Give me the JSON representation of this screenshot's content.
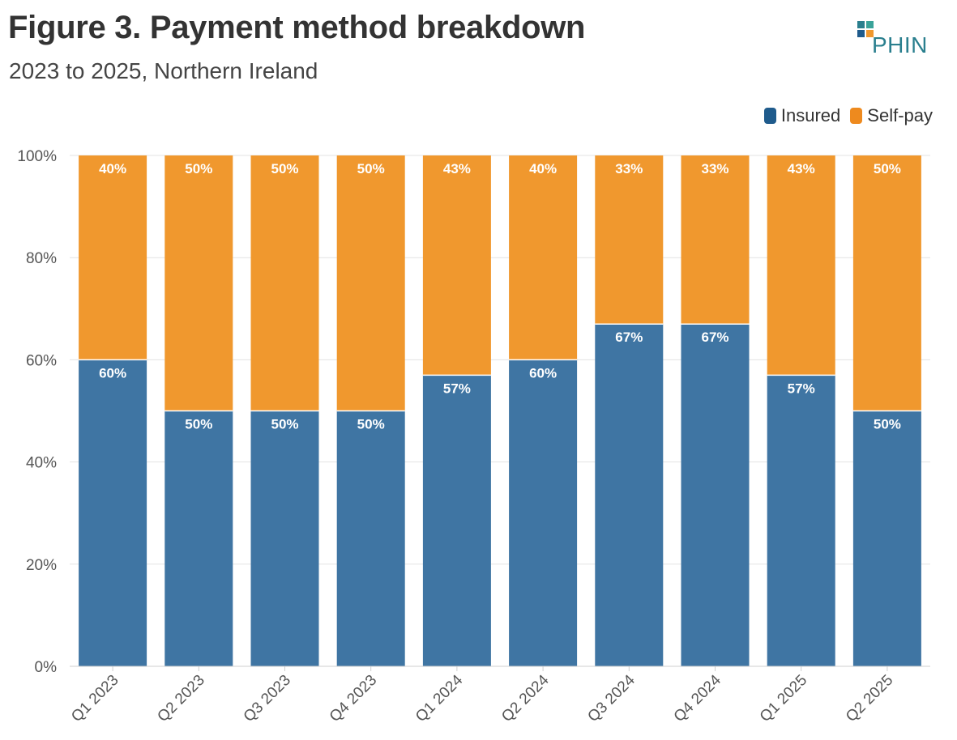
{
  "chart_data": {
    "type": "bar",
    "stacked": true,
    "title": "Figure 3. Payment method breakdown",
    "subtitle": "2023 to 2025, Northern Ireland",
    "brand": "PHIN",
    "categories": [
      "Q1 2023",
      "Q2 2023",
      "Q3 2023",
      "Q4 2023",
      "Q1 2024",
      "Q2 2024",
      "Q3 2024",
      "Q4 2024",
      "Q1 2025",
      "Q2 2025"
    ],
    "series": [
      {
        "name": "Insured",
        "color": "#3f75a3",
        "values": [
          60,
          50,
          50,
          50,
          57,
          60,
          67,
          67,
          57,
          50
        ],
        "labels": [
          "60%",
          "50%",
          "50%",
          "50%",
          "57%",
          "60%",
          "67%",
          "67%",
          "57%",
          "50%"
        ]
      },
      {
        "name": "Self-pay",
        "color": "#f0982e",
        "values": [
          40,
          50,
          50,
          50,
          43,
          40,
          33,
          33,
          43,
          50
        ],
        "labels": [
          "40%",
          "50%",
          "50%",
          "50%",
          "43%",
          "40%",
          "33%",
          "33%",
          "43%",
          "50%"
        ]
      }
    ],
    "yticks": [
      "0%",
      "20%",
      "40%",
      "60%",
      "80%",
      "100%"
    ],
    "ylim": [
      0,
      100
    ],
    "legend": "top-right",
    "grid": true
  },
  "legend_colors": {
    "insured": "#1f5b8c",
    "selfpay": "#ee8a1e"
  }
}
